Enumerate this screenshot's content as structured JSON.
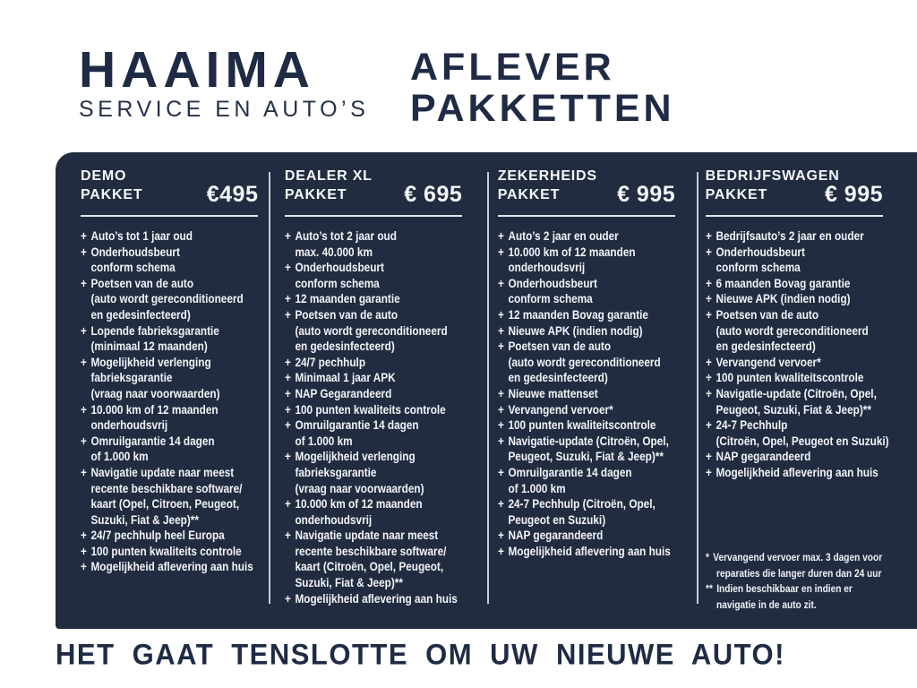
{
  "colors": {
    "panel_bg": "#222c40",
    "navy_text": "#1f2b45",
    "panel_text": "#f5f7fa",
    "divider": "#c7ccd5"
  },
  "header": {
    "logo_title": "HAAIMA",
    "logo_subtitle": "SERVICE EN AUTO’S",
    "headline_line1": "AFLEVER",
    "headline_line2": "PAKKETTEN"
  },
  "packages": [
    {
      "name_line1": "DEMO",
      "name_line2": "PAKKET",
      "price": "€495",
      "items": [
        [
          "Auto’s tot 1 jaar oud"
        ],
        [
          "Onderhoudsbeurt",
          "conform schema"
        ],
        [
          "Poetsen van de auto",
          "(auto wordt gereconditioneerd",
          "en gedesinfecteerd)"
        ],
        [
          "Lopende fabrieksgarantie",
          "(minimaal 12 maanden)"
        ],
        [
          "Mogelijkheid verlenging",
          "fabrieksgarantie",
          "(vraag naar voorwaarden)"
        ],
        [
          "10.000 km of 12 maanden",
          "onderhoudsvrij"
        ],
        [
          "Omruilgarantie 14 dagen",
          "of 1.000 km"
        ],
        [
          "Navigatie update naar meest",
          "recente beschikbare software/",
          "kaart (Opel, Citroen, Peugeot,",
          "Suzuki, Fiat & Jeep)**"
        ],
        [
          "24/7 pechhulp heel Europa"
        ],
        [
          "100 punten kwaliteits controle"
        ],
        [
          "Mogelijkheid aflevering aan huis"
        ]
      ]
    },
    {
      "name_line1": "DEALER XL",
      "name_line2": "PAKKET",
      "price": "€ 695",
      "items": [
        [
          "Auto’s tot 2 jaar oud",
          "max. 40.000 km"
        ],
        [
          "Onderhoudsbeurt",
          "conform schema"
        ],
        [
          "12 maanden garantie"
        ],
        [
          "Poetsen van de auto",
          "(auto wordt gereconditioneerd",
          "en gedesinfecteerd)"
        ],
        [
          "24/7 pechhulp"
        ],
        [
          "Minimaal 1 jaar APK"
        ],
        [
          "NAP Gegarandeerd"
        ],
        [
          "100 punten kwaliteits controle"
        ],
        [
          "Omruilgarantie 14 dagen",
          "of 1.000 km"
        ],
        [
          "Mogelijkheid verlenging",
          "fabrieksgarantie",
          "(vraag naar voorwaarden)"
        ],
        [
          "10.000 km of 12 maanden",
          "onderhoudsvrij"
        ],
        [
          "Navigatie update naar meest",
          "recente beschikbare software/",
          "kaart (Citroën, Opel, Peugeot,",
          "Suzuki, Fiat & Jeep)**"
        ],
        [
          "Mogelijkheid aflevering aan huis"
        ]
      ]
    },
    {
      "name_line1": "ZEKERHEIDS",
      "name_line2": "PAKKET",
      "price": "€ 995",
      "items": [
        [
          "Auto’s 2 jaar en ouder"
        ],
        [
          "10.000 km of 12 maanden",
          "onderhoudsvrij"
        ],
        [
          "Onderhoudsbeurt",
          "conform schema"
        ],
        [
          "12 maanden Bovag garantie"
        ],
        [
          "Nieuwe APK (indien nodig)"
        ],
        [
          "Poetsen van de auto",
          "(auto wordt gereconditioneerd",
          "en gedesinfecteerd)"
        ],
        [
          "Nieuwe mattenset"
        ],
        [
          "Vervangend vervoer*"
        ],
        [
          "100 punten kwaliteitscontrole"
        ],
        [
          "Navigatie-update (Citroën, Opel,",
          "Peugeot, Suzuki, Fiat & Jeep)**"
        ],
        [
          "Omruilgarantie 14 dagen",
          "of 1.000 km"
        ],
        [
          "24-7 Pechhulp (Citroën, Opel,",
          "Peugeot en Suzuki)"
        ],
        [
          "NAP gegarandeerd"
        ],
        [
          "Mogelijkheid aflevering aan huis"
        ]
      ]
    },
    {
      "name_line1": "BEDRIJFSWAGEN",
      "name_line2": "PAKKET",
      "price": "€ 995",
      "items": [
        [
          "Bedrijfsauto’s 2 jaar en ouder"
        ],
        [
          "Onderhoudsbeurt",
          "conform schema"
        ],
        [
          "6 maanden Bovag garantie"
        ],
        [
          "Nieuwe APK (indien nodig)"
        ],
        [
          "Poetsen van de auto",
          "(auto wordt gereconditioneerd",
          "en gedesinfecteerd)"
        ],
        [
          "Vervangend vervoer*"
        ],
        [
          "100 punten kwaliteitscontrole"
        ],
        [
          "Navigatie-update (Citroën, Opel,",
          "Peugeot, Suzuki, Fiat & Jeep)**"
        ],
        [
          "24-7 Pechhulp",
          "(Citroën, Opel, Peugeot en Suzuki)"
        ],
        [
          "NAP gegarandeerd"
        ],
        [
          "Mogelijkheid aflevering aan huis"
        ]
      ]
    }
  ],
  "footnotes": [
    {
      "marker": "*",
      "lines": [
        "Vervangend vervoer max. 3 dagen voor",
        "reparaties die langer duren dan 24 uur"
      ]
    },
    {
      "marker": "**",
      "lines": [
        "Indien beschikbaar en indien er",
        "navigatie in de auto zit."
      ]
    }
  ],
  "footer": {
    "text": "HET GAAT TENSLOTTE OM UW NIEUWE AUTO!"
  }
}
